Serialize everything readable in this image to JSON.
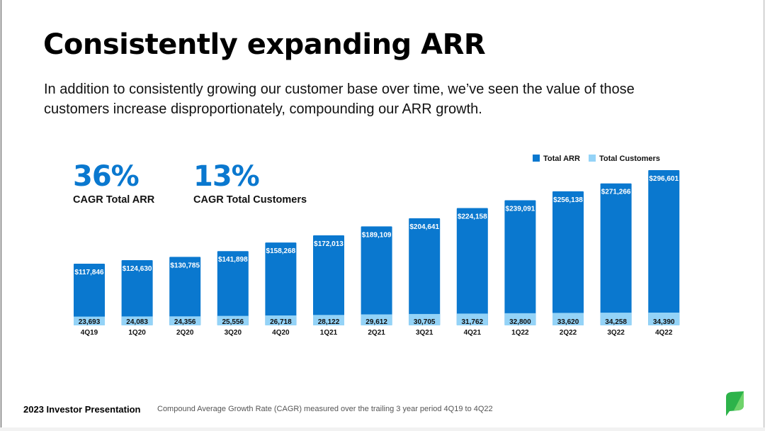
{
  "slide": {
    "title": "Consistently expanding ARR",
    "subtitle": "In addition to consistently growing our customer base over time, we’ve seen the value of those customers increase disproportionately, compounding our ARR growth.",
    "kpis": [
      {
        "value": "36%",
        "label": "CAGR Total ARR"
      },
      {
        "value": "13%",
        "label": "CAGR Total Customers"
      }
    ],
    "footer": {
      "left": "2023 Investor Presentation",
      "note": "Compound Average Growth Rate (CAGR) measured over the trailing 3 year period 4Q19 to 4Q22"
    },
    "logo_icon": "leaf-logo-icon"
  },
  "chart_data": {
    "type": "bar",
    "categories": [
      "4Q19",
      "1Q20",
      "2Q20",
      "3Q20",
      "4Q20",
      "1Q21",
      "2Q21",
      "3Q21",
      "4Q21",
      "1Q22",
      "2Q22",
      "3Q22",
      "4Q22"
    ],
    "series": [
      {
        "name": "Total ARR",
        "color": "#0a78cf",
        "values": [
          117846,
          124630,
          130785,
          141898,
          158268,
          172013,
          189109,
          204641,
          224158,
          239091,
          256138,
          271266,
          296601
        ],
        "labels": [
          "$117,846",
          "$124,630",
          "$130,785",
          "$141,898",
          "$158,268",
          "$172,013",
          "$189,109",
          "$204,641",
          "$224,158",
          "$239,091",
          "$256,138",
          "$271,266",
          "$296,601"
        ]
      },
      {
        "name": "Total Customers",
        "color": "#94d3f7",
        "values": [
          23693,
          24083,
          24356,
          25556,
          26718,
          28122,
          29612,
          30705,
          31762,
          32800,
          33620,
          34258,
          34390
        ],
        "labels": [
          "23,693",
          "24,083",
          "24,356",
          "25,556",
          "26,718",
          "28,122",
          "29,612",
          "30,705",
          "31,762",
          "32,800",
          "33,620",
          "34,258",
          "34,390"
        ]
      }
    ],
    "legend": "top-right",
    "grid": false
  }
}
